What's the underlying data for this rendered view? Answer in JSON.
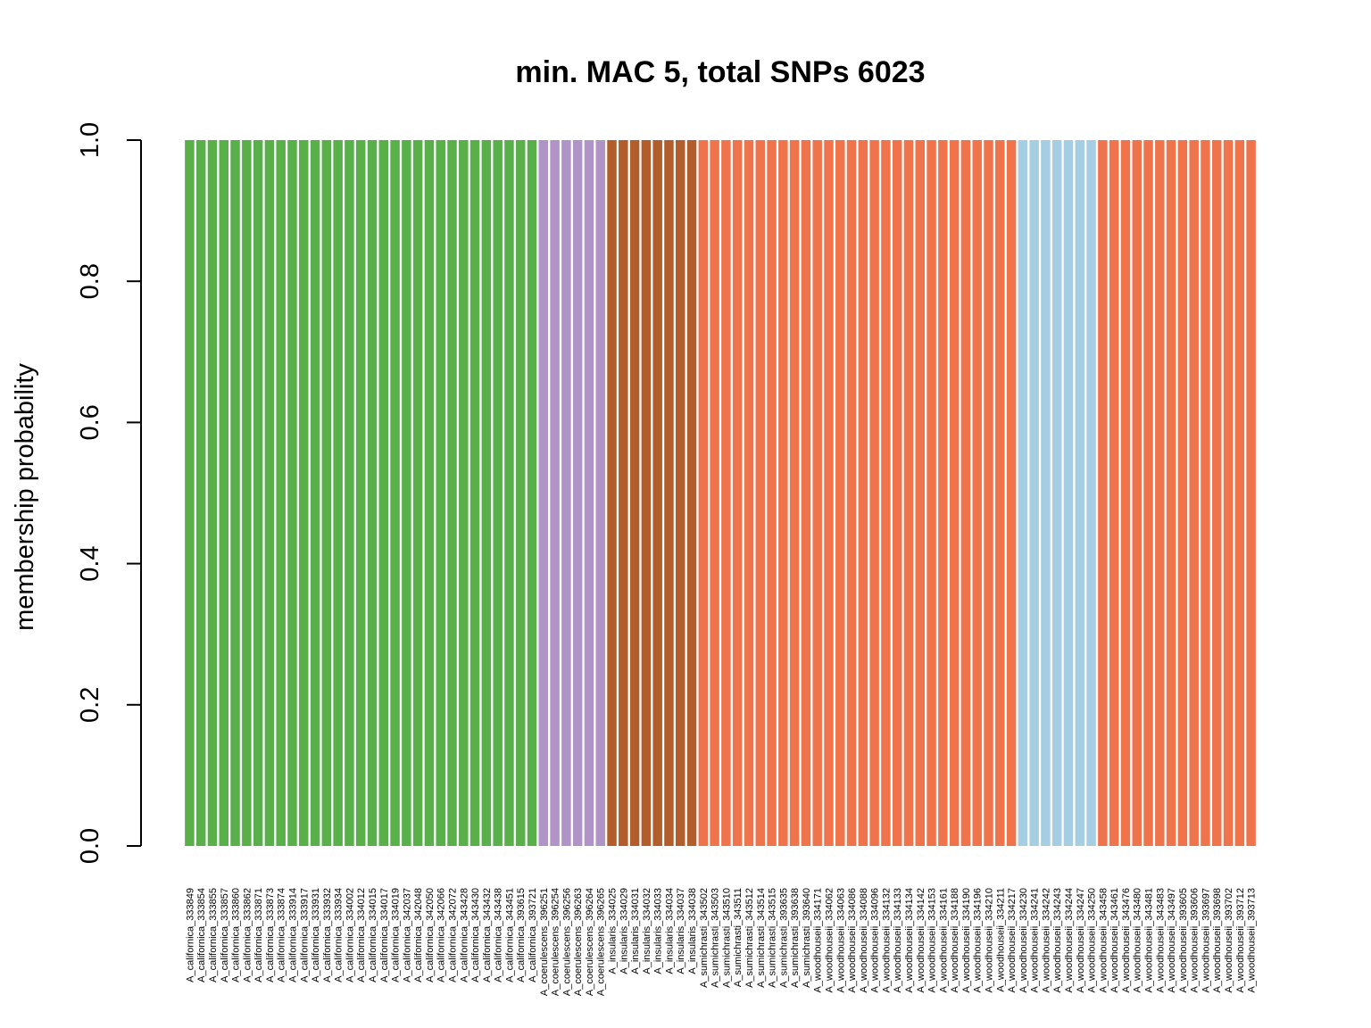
{
  "chart_data": {
    "type": "bar",
    "stacked": true,
    "title": "min. MAC 5, total SNPs 6023",
    "xlabel": "",
    "ylabel": "membership probability",
    "ylim": [
      0,
      1
    ],
    "yticks": [
      "0.0",
      "0.2",
      "0.4",
      "0.6",
      "0.8",
      "1.0"
    ],
    "grid": false,
    "legend": "none",
    "cluster_colors": [
      "#59b04a",
      "#b094c8",
      "#b25d2c",
      "#f0744b",
      "#a6cee3"
    ],
    "categories": [
      "A_californica_333849",
      "A_californica_333854",
      "A_californica_333855",
      "A_californica_333857",
      "A_californica_333860",
      "A_californica_333862",
      "A_californica_333871",
      "A_californica_333873",
      "A_californica_333874",
      "A_californica_333914",
      "A_californica_333917",
      "A_californica_333931",
      "A_californica_333932",
      "A_californica_333934",
      "A_californica_334002",
      "A_californica_334012",
      "A_californica_334015",
      "A_californica_334017",
      "A_californica_334019",
      "A_californica_342037",
      "A_californica_342048",
      "A_californica_342050",
      "A_californica_342066",
      "A_californica_342072",
      "A_californica_343428",
      "A_californica_343430",
      "A_californica_343432",
      "A_californica_343438",
      "A_californica_343451",
      "A_californica_393615",
      "A_californica_393721",
      "A_coerulescens_396251",
      "A_coerulescens_396254",
      "A_coerulescens_396256",
      "A_coerulescens_396263",
      "A_coerulescens_396264",
      "A_coerulescens_396265",
      "A_insularis_334025",
      "A_insularis_334029",
      "A_insularis_334031",
      "A_insularis_334032",
      "A_insularis_334033",
      "A_insularis_334034",
      "A_insularis_334037",
      "A_insularis_334038",
      "A_sumichrasti_343502",
      "A_sumichrasti_343503",
      "A_sumichrasti_343510",
      "A_sumichrasti_343511",
      "A_sumichrasti_343512",
      "A_sumichrasti_343514",
      "A_sumichrasti_343515",
      "A_sumichrasti_393635",
      "A_sumichrasti_393638",
      "A_sumichrasti_393640",
      "A_woodhouseii_334171",
      "A_woodhouseii_334062",
      "A_woodhouseii_334063",
      "A_woodhouseii_334086",
      "A_woodhouseii_334088",
      "A_woodhouseii_334096",
      "A_woodhouseii_334132",
      "A_woodhouseii_334133",
      "A_woodhouseii_334134",
      "A_woodhouseii_334142",
      "A_woodhouseii_334153",
      "A_woodhouseii_334161",
      "A_woodhouseii_334188",
      "A_woodhouseii_334190",
      "A_woodhouseii_334196",
      "A_woodhouseii_334210",
      "A_woodhouseii_334211",
      "A_woodhouseii_334217",
      "A_woodhouseii_334230",
      "A_woodhouseii_334241",
      "A_woodhouseii_334242",
      "A_woodhouseii_334243",
      "A_woodhouseii_334244",
      "A_woodhouseii_334247",
      "A_woodhouseii_334250",
      "A_woodhouseii_343458",
      "A_woodhouseii_343461",
      "A_woodhouseii_343476",
      "A_woodhouseii_343480",
      "A_woodhouseii_343481",
      "A_woodhouseii_343483",
      "A_woodhouseii_343497",
      "A_woodhouseii_393605",
      "A_woodhouseii_393606",
      "A_woodhouseii_393697",
      "A_woodhouseii_393698",
      "A_woodhouseii_393702",
      "A_woodhouseii_393712",
      "A_woodhouseii_393713"
    ],
    "cluster_runs": [
      {
        "cluster": 0,
        "count": 31
      },
      {
        "cluster": 1,
        "count": 6
      },
      {
        "cluster": 2,
        "count": 8
      },
      {
        "cluster": 3,
        "count": 28
      },
      {
        "cluster": 4,
        "count": 7
      },
      {
        "cluster": 3,
        "count": 14
      }
    ],
    "membership_value": 1.0
  }
}
